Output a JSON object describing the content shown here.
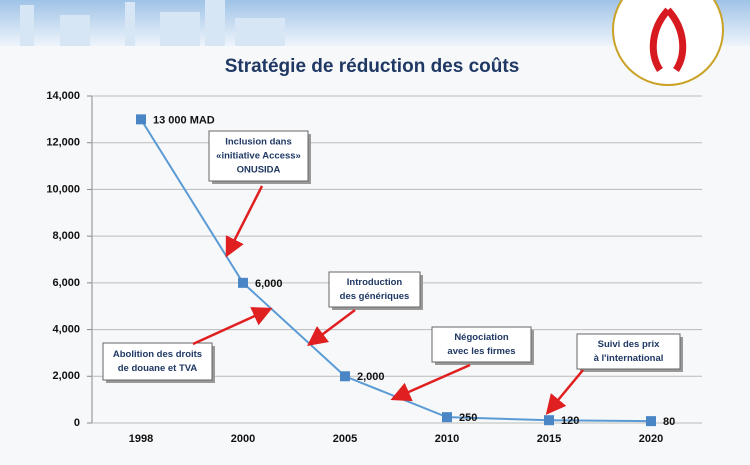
{
  "chart_data": {
    "type": "line",
    "title": "Stratégie de réduction des coûts",
    "categories": [
      "1998",
      "2000",
      "2005",
      "2010",
      "2015",
      "2020"
    ],
    "values": [
      13000,
      6000,
      2000,
      250,
      120,
      80
    ],
    "value_labels": [
      "13 000 MAD",
      "6,000",
      "2,000",
      "250",
      "120",
      "80"
    ],
    "color": "#5b9bd5",
    "ylim": [
      0,
      14000
    ],
    "yticks": [
      0,
      {
        "value": 2000,
        "label": "2,000"
      },
      {
        "value": 4000,
        "label": "4,000"
      },
      {
        "value": 6000,
        "label": "6,000"
      },
      {
        "value": 8000,
        "label": "8,000"
      },
      {
        "value": 10000,
        "label": "10,000"
      },
      {
        "value": 12000,
        "label": "12,000"
      },
      {
        "value": 14000,
        "label": "14,000"
      }
    ],
    "grid": true,
    "annotations": [
      {
        "lines": [
          "Inclusion dans",
          "«initiative Access»",
          "ONUSIDA"
        ]
      },
      {
        "lines": [
          "Introduction",
          "des génériques"
        ]
      },
      {
        "lines": [
          "Abolition des droits",
          "de douane et TVA"
        ]
      },
      {
        "lines": [
          "Négociation",
          "avec les firmes"
        ]
      },
      {
        "lines": [
          "Suivi des prix",
          "à l'international"
        ]
      }
    ]
  }
}
